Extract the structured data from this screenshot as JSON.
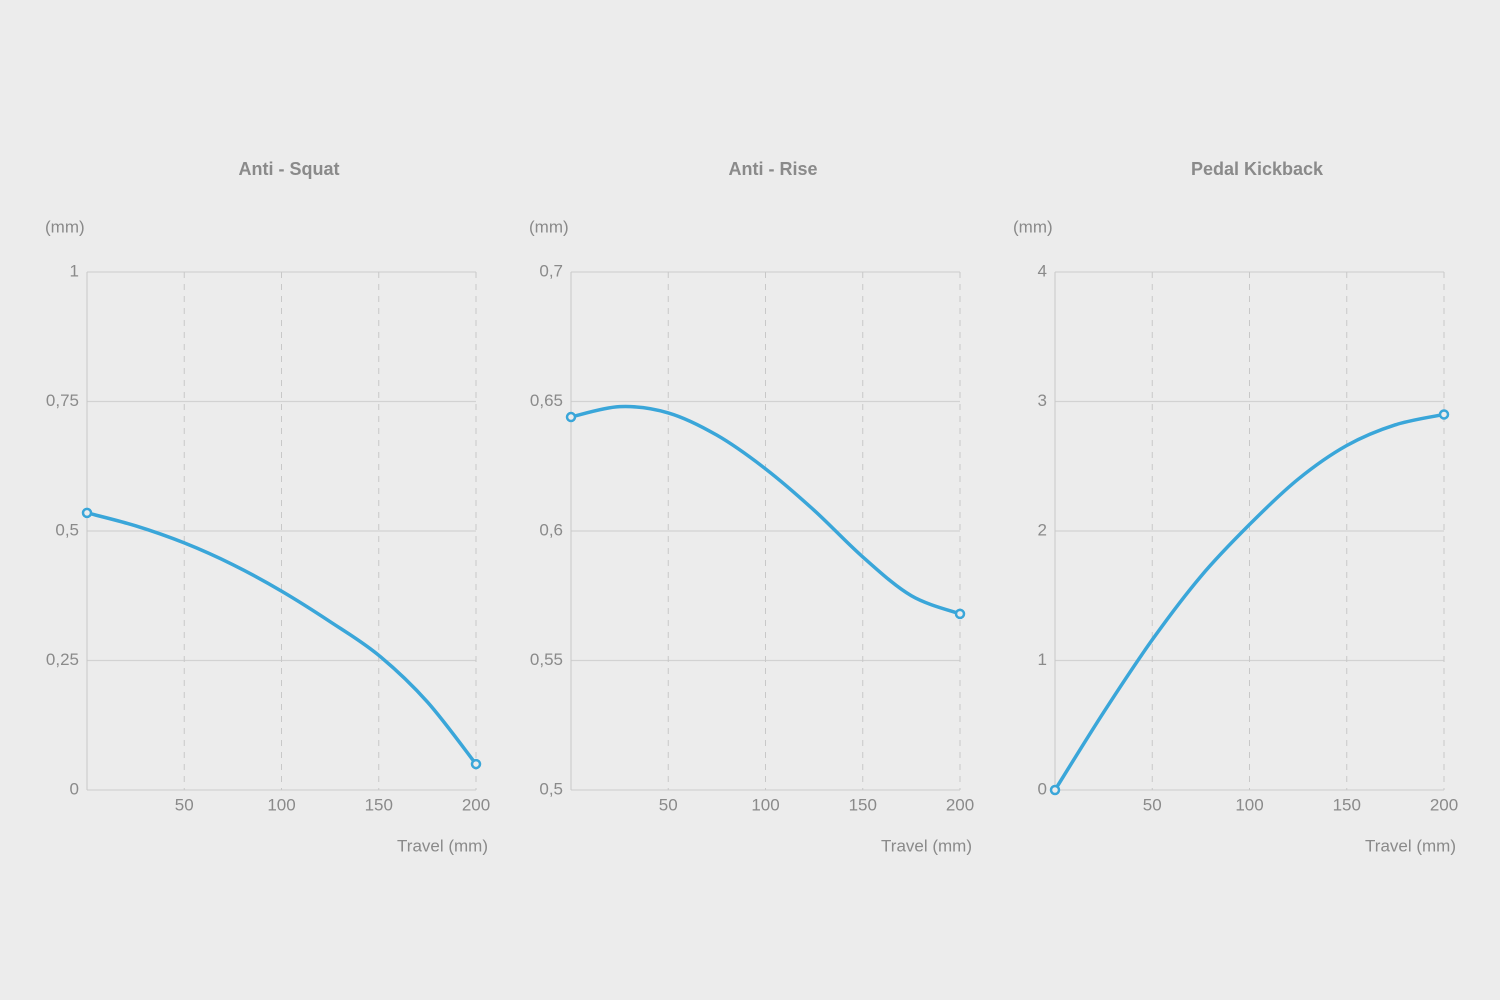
{
  "chart_data": [
    {
      "type": "line",
      "title": "Anti - Squat",
      "y_label": "(mm)",
      "x_label": "Travel (mm)",
      "x": [
        0,
        25,
        50,
        75,
        100,
        125,
        150,
        175,
        200
      ],
      "series": [
        {
          "color": "#3aa6d9",
          "values": [
            0.535,
            0.51,
            0.477,
            0.435,
            0.384,
            0.325,
            0.26,
            0.17,
            0.05
          ]
        }
      ],
      "xlim": [
        0,
        200
      ],
      "xticks": [
        50,
        100,
        150,
        200
      ],
      "ylim": [
        0,
        1
      ],
      "yticks": [
        0,
        {
          "value": 0.25,
          "label": "0,25"
        },
        {
          "value": 0.5,
          "label": "0,5"
        },
        {
          "value": 0.75,
          "label": "0,75"
        },
        1
      ],
      "grid": true
    },
    {
      "type": "line",
      "title": "Anti - Rise",
      "y_label": "(mm)",
      "x_label": "Travel (mm)",
      "x": [
        0,
        25,
        50,
        75,
        100,
        125,
        150,
        175,
        200
      ],
      "series": [
        {
          "color": "#3aa6d9",
          "values": [
            0.644,
            0.648,
            0.6456,
            0.637,
            0.624,
            0.608,
            0.59,
            0.575,
            0.568
          ]
        }
      ],
      "xlim": [
        0,
        200
      ],
      "xticks": [
        50,
        100,
        150,
        200
      ],
      "ylim": [
        0.5,
        0.7
      ],
      "yticks": [
        {
          "value": 0.5,
          "label": "0,5"
        },
        {
          "value": 0.55,
          "label": "0,55"
        },
        {
          "value": 0.6,
          "label": "0,6"
        },
        {
          "value": 0.65,
          "label": "0,65"
        },
        {
          "value": 0.7,
          "label": "0,7"
        }
      ],
      "grid": true
    },
    {
      "type": "line",
      "title": "Pedal Kickback",
      "y_label": "(mm)",
      "x_label": "Travel (mm)",
      "x": [
        0,
        25,
        50,
        75,
        100,
        125,
        150,
        175,
        200
      ],
      "series": [
        {
          "color": "#3aa6d9",
          "values": [
            0,
            0.6,
            1.16,
            1.65,
            2.05,
            2.4,
            2.66,
            2.82,
            2.9
          ]
        }
      ],
      "xlim": [
        0,
        200
      ],
      "xticks": [
        50,
        100,
        150,
        200
      ],
      "ylim": [
        0,
        4
      ],
      "yticks": [
        0,
        1,
        2,
        3,
        4
      ],
      "grid": true
    }
  ]
}
